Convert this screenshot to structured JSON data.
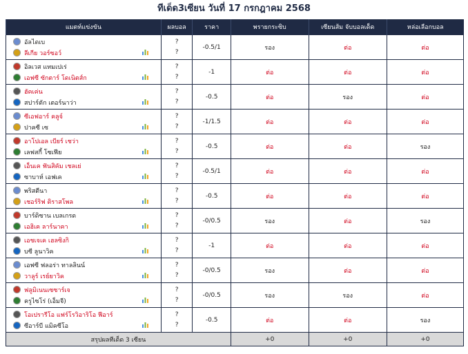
{
  "title": "ทีเด็ด3เซียน วันที่ 17 กรกฎาคม 2568",
  "table": {
    "headers": [
      "แมตท์แข่งขัน",
      "ผลบอล",
      "ราคา",
      "พรายกระซิบ",
      "เซียนส้ม จับบอลเด็ด",
      "หล่อเลือกบอล"
    ],
    "rows": [
      {
        "home": "อัลไดเบ",
        "away": "ลีเกีย วอร์ซอว์",
        "favorite": "away",
        "result": [
          "?",
          "?"
        ],
        "price": "-0.5/1",
        "tips": [
          {
            "text": "รอง",
            "color": "#222"
          },
          {
            "text": "ต่อ",
            "color": "#d0021b"
          },
          {
            "text": "ต่อ",
            "color": "#d0021b"
          }
        ]
      },
      {
        "home": "อิลเวส แทมเปเร่",
        "away": "เอฟซี ซักตาร์ โดเนิตส์ก",
        "favorite": "away",
        "result": [
          "?",
          "?"
        ],
        "price": "-1",
        "tips": [
          {
            "text": "ต่อ",
            "color": "#d0021b"
          },
          {
            "text": "ต่อ",
            "color": "#d0021b"
          },
          {
            "text": "ต่อ",
            "color": "#d0021b"
          }
        ]
      },
      {
        "home": "ฮัคเค่น",
        "away": "สปาร์ตัก เตอร์นาว่า",
        "favorite": "home",
        "result": [
          "?",
          "?"
        ],
        "price": "-0.5",
        "tips": [
          {
            "text": "ต่อ",
            "color": "#d0021b"
          },
          {
            "text": "รอง",
            "color": "#222"
          },
          {
            "text": "ต่อ",
            "color": "#d0021b"
          }
        ]
      },
      {
        "home": "ซีเอฟอาร์ คลูจ์",
        "away": "ปาคซี เซ",
        "favorite": "home",
        "result": [
          "?",
          "?"
        ],
        "price": "-1/1.5",
        "tips": [
          {
            "text": "ต่อ",
            "color": "#d0021b"
          },
          {
            "text": "ต่อ",
            "color": "#d0021b"
          },
          {
            "text": "ต่อ",
            "color": "#d0021b"
          }
        ]
      },
      {
        "home": "อาโปเอล เบียร์ เชว่า",
        "away": "เลฟสกี้ โซเฟีย",
        "favorite": "home",
        "result": [
          "?",
          "?"
        ],
        "price": "-0.5",
        "tips": [
          {
            "text": "ต่อ",
            "color": "#d0021b"
          },
          {
            "text": "ต่อ",
            "color": "#d0021b"
          },
          {
            "text": "รอง",
            "color": "#222"
          }
        ]
      },
      {
        "home": "เอ็นเค ฟันสิคัม เชลเย่",
        "away": "ซาบาห์ เอฟเค",
        "favorite": "home",
        "result": [
          "?",
          "?"
        ],
        "price": "-0.5/1",
        "tips": [
          {
            "text": "ต่อ",
            "color": "#d0021b"
          },
          {
            "text": "ต่อ",
            "color": "#d0021b"
          },
          {
            "text": "ต่อ",
            "color": "#d0021b"
          }
        ]
      },
      {
        "home": "พริสตีนา",
        "away": "เชอร์ริฟ ติราสโพล",
        "favorite": "away",
        "result": [
          "?",
          "?"
        ],
        "price": "-0.5",
        "tips": [
          {
            "text": "ต่อ",
            "color": "#d0021b"
          },
          {
            "text": "ต่อ",
            "color": "#d0021b"
          },
          {
            "text": "ต่อ",
            "color": "#d0021b"
          }
        ]
      },
      {
        "home": "บาร์ดิซาน เบลเกรด",
        "away": "เอฮิเค ลาร์นาคา",
        "favorite": "away",
        "result": [
          "?",
          "?"
        ],
        "price": "-0/0.5",
        "tips": [
          {
            "text": "รอง",
            "color": "#222"
          },
          {
            "text": "ต่อ",
            "color": "#d0021b"
          },
          {
            "text": "รอง",
            "color": "#222"
          }
        ]
      },
      {
        "home": "เอชเจเค เฮลซิงกิ",
        "away": "บซี ลูนาวิค",
        "favorite": "home",
        "result": [
          "?",
          "?"
        ],
        "price": "-1",
        "tips": [
          {
            "text": "ต่อ",
            "color": "#d0021b"
          },
          {
            "text": "ต่อ",
            "color": "#d0021b"
          },
          {
            "text": "ต่อ",
            "color": "#d0021b"
          }
        ]
      },
      {
        "home": "เอฟซี ฟลอร่า ทาลลินน์",
        "away": "วาลูร์ เรย์ยาวิค",
        "favorite": "away",
        "result": [
          "?",
          "?"
        ],
        "price": "-0/0.5",
        "tips": [
          {
            "text": "รอง",
            "color": "#222"
          },
          {
            "text": "ต่อ",
            "color": "#d0021b"
          },
          {
            "text": "ต่อ",
            "color": "#d0021b"
          }
        ]
      },
      {
        "home": "ฟลูมิเนนเซซาร์เจ",
        "away": "ครูไซโร่ (เอ็มจี)",
        "favorite": "home",
        "result": [
          "?",
          "?"
        ],
        "price": "-0/0.5",
        "tips": [
          {
            "text": "รอง",
            "color": "#222"
          },
          {
            "text": "รอง",
            "color": "#222"
          },
          {
            "text": "ต่อ",
            "color": "#d0021b"
          }
        ]
      },
      {
        "home": "โอเปรารีโอ แฟร์โรวิอาริโอ ฟีอาร์",
        "away": "ซีอาร์บี แมิคซีโอ",
        "favorite": "home",
        "result": [
          "?",
          "?"
        ],
        "price": "-0.5",
        "tips": [
          {
            "text": "ต่อ",
            "color": "#d0021b"
          },
          {
            "text": "ต่อ",
            "color": "#d0021b"
          },
          {
            "text": "รอง",
            "color": "#222"
          }
        ]
      }
    ],
    "footer": {
      "label": "สรุปผลทีเด็ด 3 เซียน",
      "totals": [
        "+0",
        "+0",
        "+0"
      ]
    }
  }
}
